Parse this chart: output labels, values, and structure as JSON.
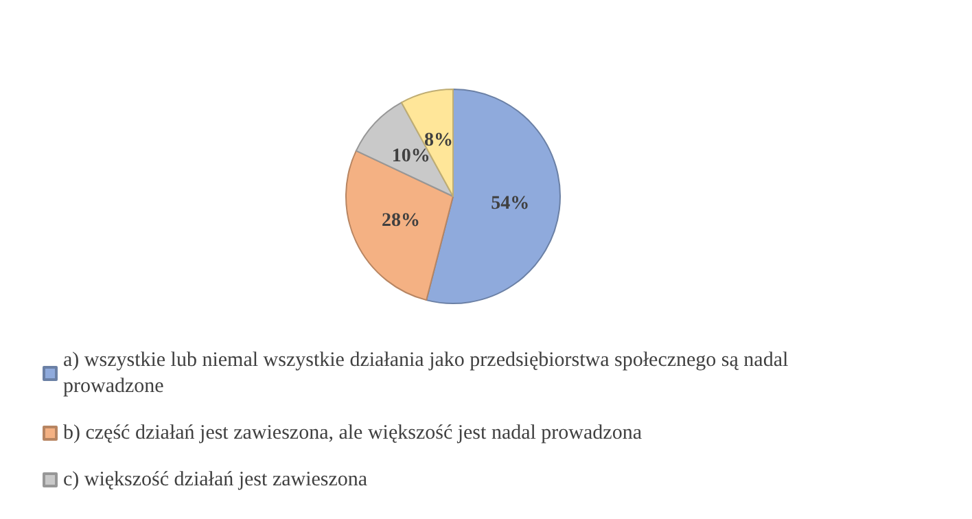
{
  "chart_data": {
    "type": "pie",
    "categories": [
      "a) wszystkie lub niemal wszystkie działania jako przedsiębiorstwa społecznego są nadal prowadzone",
      "b) część działań jest zawieszona, ale większość jest nadal prowadzona",
      "c) większość działań jest zawieszona",
      null
    ],
    "values": [
      54,
      28,
      10,
      8
    ],
    "value_labels": [
      "54%",
      "28%",
      "10%",
      "8%"
    ],
    "colors": [
      "#8faadc",
      "#f4b183",
      "#c9c9c9",
      "#ffe699"
    ],
    "legend": "bottom"
  }
}
